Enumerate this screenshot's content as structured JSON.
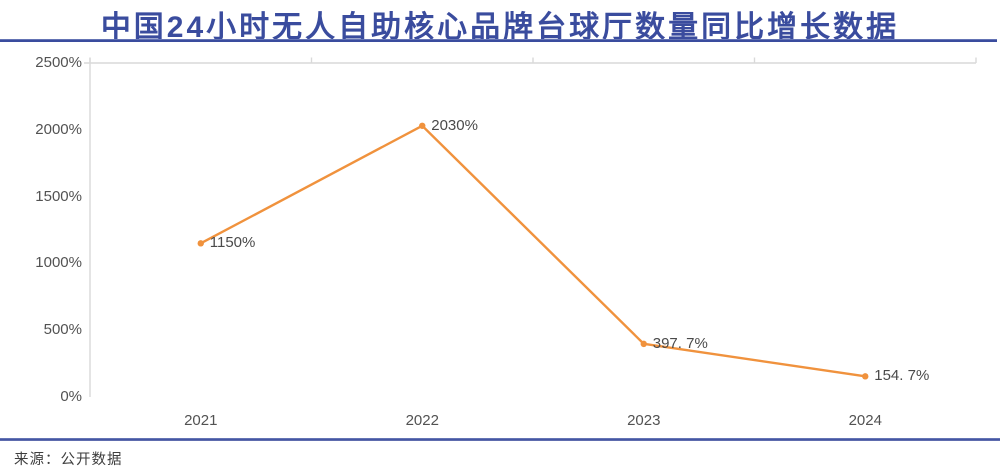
{
  "page": {
    "title": "中国24小时无人自助核心品牌台球厅数量同比增长数据",
    "source": "来源：公开数据"
  },
  "colors": {
    "title_navy": "#3A4C9E",
    "line_orange": "#F0923D",
    "axis_gray": "#D9D9D9",
    "label_gray": "#525252"
  },
  "chart_data": {
    "type": "line",
    "title": "中国24小时无人自助核心品牌台球厅数量同比增长数据",
    "categories": [
      "2021",
      "2022",
      "2023",
      "2024"
    ],
    "values": [
      1150,
      2030,
      397.7,
      154.7
    ],
    "point_labels": [
      "1150%",
      "2030%",
      "397. 7%",
      "154. 7%"
    ],
    "y_tick_values": [
      0,
      500,
      1000,
      1500,
      2000,
      2500
    ],
    "y_tick_labels": [
      "0%",
      "500%",
      "1000%",
      "1500%",
      "2000%",
      "2500%"
    ],
    "ylim": [
      0,
      2500
    ],
    "xlabel": "",
    "ylabel": "",
    "grid": "off",
    "legend": "none",
    "marker": "circle",
    "line_color": "#F0923D"
  }
}
